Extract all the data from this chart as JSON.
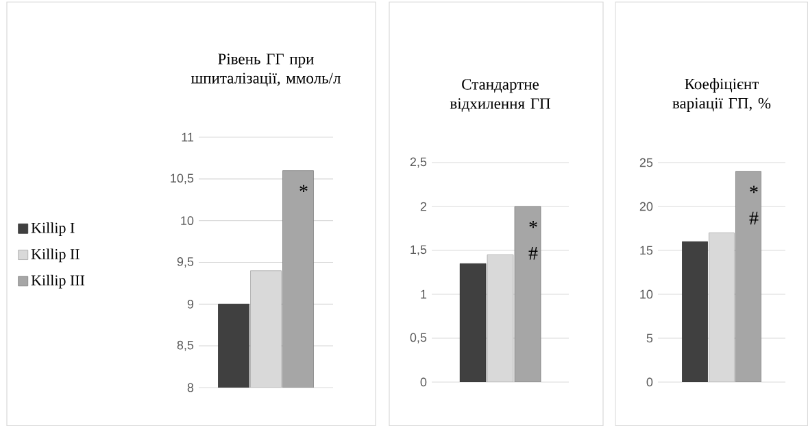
{
  "chart_data": [
    {
      "type": "bar",
      "title": "Рівень ГГ при шпиталізації, ммоль/л",
      "categories": [
        null
      ],
      "series": [
        {
          "name": "Killip I",
          "color": "#404040",
          "values": [
            9.0
          ]
        },
        {
          "name": "Killip II",
          "color": "#d9d9d9",
          "values": [
            9.4
          ]
        },
        {
          "name": "Killip III",
          "color": "#a6a6a6",
          "values": [
            10.6
          ]
        }
      ],
      "ylim": [
        8,
        11
      ],
      "yticks": [
        8,
        {
          "value": 8.5,
          "label": "8,5"
        },
        9,
        {
          "value": 9.5,
          "label": "9,5"
        },
        10,
        {
          "value": 10.5,
          "label": "10,5"
        },
        11
      ],
      "grid": "y",
      "legend": "left",
      "annotations": [
        "*"
      ]
    },
    {
      "type": "bar",
      "title": "Стандартне відхилення ГП",
      "categories": [
        null
      ],
      "series": [
        {
          "color": "#404040",
          "values": [
            1.35
          ]
        },
        {
          "color": "#d9d9d9",
          "values": [
            1.45
          ]
        },
        {
          "color": "#a6a6a6",
          "values": [
            2.0
          ]
        }
      ],
      "ylim": [
        0,
        2.5
      ],
      "yticks": [
        0,
        {
          "value": 0.5,
          "label": "0,5"
        },
        1,
        {
          "value": 1.5,
          "label": "1,5"
        },
        2,
        {
          "value": 2.5,
          "label": "2,5"
        }
      ],
      "grid": "y",
      "annotations": [
        "*",
        "#"
      ]
    },
    {
      "type": "bar",
      "title": "Коефіцієнт варіації ГП, %",
      "categories": [
        null
      ],
      "series": [
        {
          "color": "#404040",
          "values": [
            16
          ]
        },
        {
          "color": "#d9d9d9",
          "values": [
            17
          ]
        },
        {
          "color": "#a6a6a6",
          "values": [
            24
          ]
        }
      ],
      "ylim": [
        0,
        25
      ],
      "yticks": [
        0,
        5,
        10,
        15,
        20,
        25
      ],
      "grid": "y",
      "annotations": [
        "*",
        "#"
      ]
    }
  ]
}
